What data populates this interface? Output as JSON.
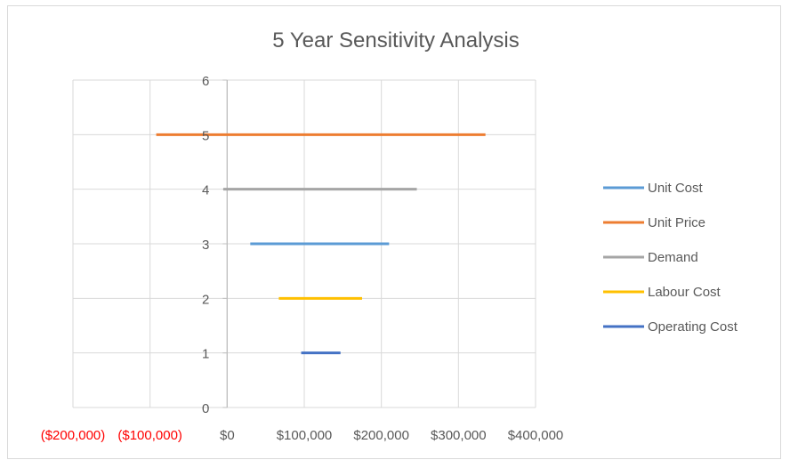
{
  "chart_data": {
    "type": "line",
    "title": "5 Year Sensitivity Analysis",
    "xlim": [
      -200000,
      400000
    ],
    "ylim": [
      0,
      6
    ],
    "x_ticks": [
      -200000,
      -100000,
      0,
      100000,
      200000,
      300000,
      400000
    ],
    "x_tick_labels": [
      "($200,000)",
      "($100,000)",
      "$0",
      "$100,000",
      "$200,000",
      "$300,000",
      "$400,000"
    ],
    "negative_label_color": "#ff0000",
    "y_ticks": [
      0,
      1,
      2,
      3,
      4,
      5,
      6
    ],
    "y_tick_labels": [
      "0",
      "1",
      "2",
      "3",
      "4",
      "5",
      "6"
    ],
    "grid": true,
    "legend_position": "right",
    "series": [
      {
        "name": "Unit Cost",
        "color": "#5b9bd5",
        "y": 3,
        "x": [
          30000,
          210000
        ]
      },
      {
        "name": "Unit Price",
        "color": "#ed7d31",
        "y": 5,
        "x": [
          -92000,
          335000
        ]
      },
      {
        "name": "Demand",
        "color": "#a5a5a5",
        "y": 4,
        "x": [
          -5000,
          246000
        ]
      },
      {
        "name": "Labour Cost",
        "color": "#ffc000",
        "y": 2,
        "x": [
          67000,
          175000
        ]
      },
      {
        "name": "Operating Cost",
        "color": "#4472c4",
        "y": 1,
        "x": [
          96000,
          147000
        ]
      }
    ]
  }
}
